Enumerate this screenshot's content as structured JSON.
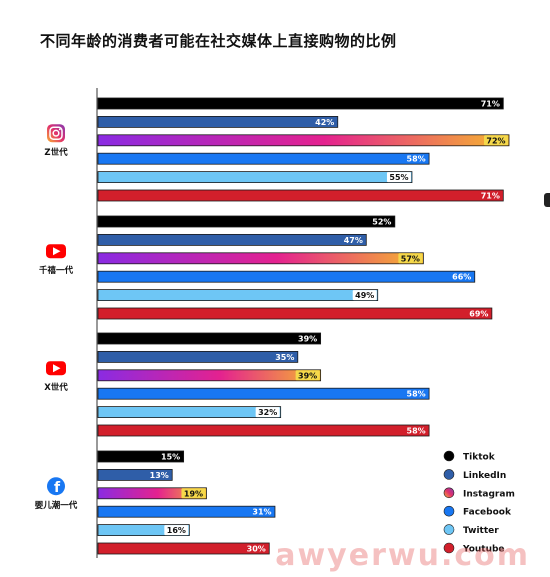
{
  "chart_data": {
    "type": "bar",
    "orientation": "horizontal",
    "title": "不同年龄的消费者可能在社交媒体上直接购物的比例",
    "xlim": [
      0,
      100
    ],
    "groups": [
      {
        "label": "Z世代",
        "icon": "instagram-icon"
      },
      {
        "label": "千禧一代",
        "icon": "youtube-icon"
      },
      {
        "label": "X世代",
        "icon": "youtube-icon"
      },
      {
        "label": "婴儿潮一代",
        "icon": "facebook-icon"
      }
    ],
    "series": [
      {
        "name": "Tiktok",
        "color": "#000000",
        "values": [
          71,
          52,
          39,
          15
        ]
      },
      {
        "name": "LinkedIn",
        "color": "#2f5ea8",
        "values": [
          42,
          47,
          35,
          13
        ]
      },
      {
        "name": "Instagram",
        "color": "#b43cd6",
        "gradient": [
          "#8a2be2",
          "#e4228f",
          "#f5b82e"
        ],
        "values": [
          72,
          57,
          39,
          19
        ]
      },
      {
        "name": "Facebook",
        "color": "#1877f2",
        "values": [
          58,
          66,
          58,
          31
        ]
      },
      {
        "name": "Twitter",
        "color": "#6ec6f5",
        "values": [
          55,
          49,
          32,
          16
        ]
      },
      {
        "name": "Youtube",
        "color": "#d21f2b",
        "values": [
          71,
          69,
          58,
          30
        ]
      }
    ],
    "value_suffix": "%",
    "legend_position": "bottom-right",
    "grid": false
  },
  "watermark": "awyerwu.com",
  "colors": {
    "label_bg": "#f5d84a",
    "instagram_brand": "#d6249f",
    "youtube_brand": "#ff0000",
    "facebook_brand": "#1877f2"
  }
}
